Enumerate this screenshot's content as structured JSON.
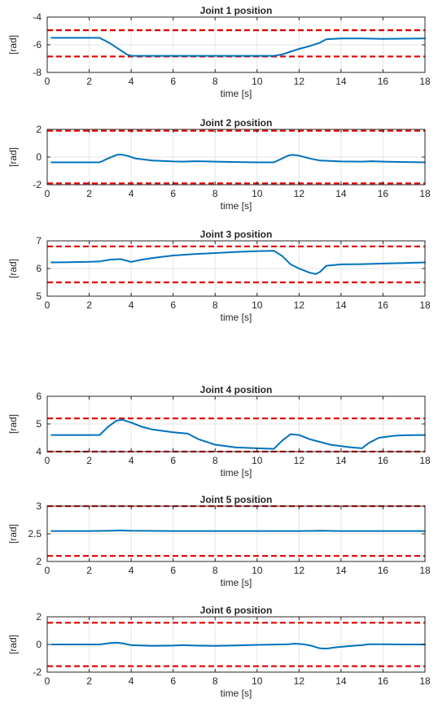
{
  "colors": {
    "series": "#0072BD",
    "limits": "#E00000",
    "grid": "#E6E6E6",
    "axes": "#262626"
  },
  "chart_data": [
    {
      "type": "line",
      "title": "Joint 1 position",
      "xlabel": "time [s]",
      "ylabel": "[rad]",
      "xlim": [
        0,
        18
      ],
      "ylim": [
        -8,
        -4
      ],
      "xticks": [
        0,
        2,
        4,
        6,
        8,
        10,
        12,
        14,
        16,
        18
      ],
      "yticks": [
        -8,
        -6,
        -4
      ],
      "grid": true,
      "series": [
        {
          "x": [
            0.2,
            2.5,
            3.0,
            3.5,
            3.8,
            4.0,
            5,
            6,
            7,
            8,
            9,
            10,
            10.8,
            11.2,
            11.6,
            12.0,
            12.5,
            13.0,
            13.3,
            14,
            15,
            16,
            17,
            18
          ],
          "y": [
            -5.5,
            -5.5,
            -5.9,
            -6.4,
            -6.7,
            -6.8,
            -6.8,
            -6.8,
            -6.8,
            -6.8,
            -6.8,
            -6.8,
            -6.8,
            -6.7,
            -6.5,
            -6.3,
            -6.1,
            -5.85,
            -5.6,
            -5.55,
            -5.55,
            -5.57,
            -5.56,
            -5.55
          ]
        }
      ],
      "limits": [
        -4.95,
        -6.85
      ]
    },
    {
      "type": "line",
      "title": "Joint 2 position",
      "xlabel": "time [s]",
      "ylabel": "[rad]",
      "xlim": [
        0,
        18
      ],
      "ylim": [
        -2,
        2
      ],
      "xticks": [
        0,
        2,
        4,
        6,
        8,
        10,
        12,
        14,
        16,
        18
      ],
      "yticks": [
        -2,
        0,
        2
      ],
      "grid": true,
      "series": [
        {
          "x": [
            0.2,
            2.5,
            2.9,
            3.3,
            3.5,
            3.8,
            4.2,
            5,
            6,
            6.5,
            7,
            8,
            9,
            10,
            10.8,
            11.2,
            11.5,
            11.7,
            12.0,
            12.5,
            13.0,
            14,
            15,
            15.5,
            16,
            17,
            18
          ],
          "y": [
            -0.38,
            -0.38,
            -0.1,
            0.15,
            0.18,
            0.1,
            -0.1,
            -0.25,
            -0.32,
            -0.33,
            -0.3,
            -0.33,
            -0.36,
            -0.38,
            -0.38,
            -0.1,
            0.12,
            0.16,
            0.1,
            -0.1,
            -0.25,
            -0.32,
            -0.33,
            -0.3,
            -0.33,
            -0.36,
            -0.38
          ]
        }
      ],
      "limits": [
        1.9,
        -1.9
      ]
    },
    {
      "type": "line",
      "title": "Joint 3 position",
      "xlabel": "time [s]",
      "ylabel": "[rad]",
      "xlim": [
        0,
        18
      ],
      "ylim": [
        5,
        7
      ],
      "xticks": [
        0,
        2,
        4,
        6,
        8,
        10,
        12,
        14,
        16,
        18
      ],
      "yticks": [
        5,
        6,
        7
      ],
      "grid": true,
      "series": [
        {
          "x": [
            0.2,
            1,
            2,
            2.5,
            3,
            3.5,
            3.8,
            4.0,
            4.5,
            5,
            6,
            7,
            8,
            9,
            10,
            10.8,
            11.2,
            11.6,
            12.0,
            12.5,
            12.8,
            13.0,
            13.3,
            14,
            15,
            16,
            17,
            18
          ],
          "y": [
            6.22,
            6.23,
            6.24,
            6.26,
            6.32,
            6.34,
            6.28,
            6.24,
            6.32,
            6.38,
            6.47,
            6.52,
            6.56,
            6.6,
            6.63,
            6.64,
            6.45,
            6.15,
            6.0,
            5.85,
            5.8,
            5.88,
            6.1,
            6.15,
            6.16,
            6.18,
            6.2,
            6.22
          ]
        }
      ],
      "limits": [
        6.8,
        5.5
      ]
    },
    {
      "type": "line",
      "title": "Joint 4 position",
      "xlabel": "time [s]",
      "ylabel": "[rad]",
      "xlim": [
        0,
        18
      ],
      "ylim": [
        4,
        6
      ],
      "xticks": [
        0,
        2,
        4,
        6,
        8,
        10,
        12,
        14,
        16,
        18
      ],
      "yticks": [
        4,
        5,
        6
      ],
      "grid": true,
      "series": [
        {
          "x": [
            0.2,
            2.5,
            2.9,
            3.3,
            3.6,
            4.0,
            4.5,
            5,
            6,
            6.7,
            7.2,
            8,
            9,
            10,
            10.8,
            11.2,
            11.6,
            12.0,
            12.5,
            13.0,
            13.5,
            14,
            14.5,
            15.0,
            15.3,
            15.8,
            16.5,
            17,
            18
          ],
          "y": [
            4.6,
            4.6,
            4.9,
            5.12,
            5.15,
            5.05,
            4.9,
            4.8,
            4.7,
            4.65,
            4.45,
            4.25,
            4.15,
            4.12,
            4.1,
            4.4,
            4.63,
            4.6,
            4.45,
            4.35,
            4.25,
            4.2,
            4.15,
            4.12,
            4.3,
            4.5,
            4.57,
            4.59,
            4.6
          ]
        }
      ],
      "limits": [
        5.2,
        4.0
      ]
    },
    {
      "type": "line",
      "title": "Joint 5 position",
      "xlabel": "time [s]",
      "ylabel": "[rad]",
      "xlim": [
        0,
        18
      ],
      "ylim": [
        2,
        3
      ],
      "xticks": [
        0,
        2,
        4,
        6,
        8,
        10,
        12,
        14,
        16,
        18
      ],
      "yticks": [
        2,
        2.5,
        3
      ],
      "ytick_labels": [
        "2",
        "2.5",
        "3"
      ],
      "grid": true,
      "series": [
        {
          "x": [
            0.2,
            2,
            3,
            3.5,
            4,
            6,
            8,
            10,
            12,
            13,
            14,
            16,
            18
          ],
          "y": [
            2.55,
            2.55,
            2.555,
            2.56,
            2.555,
            2.55,
            2.55,
            2.55,
            2.55,
            2.555,
            2.55,
            2.55,
            2.55
          ]
        }
      ],
      "limits": [
        3.0,
        2.1
      ]
    },
    {
      "type": "line",
      "title": "Joint 6 position",
      "xlabel": "time [s]",
      "ylabel": "[rad]",
      "xlim": [
        0,
        18
      ],
      "ylim": [
        -2,
        2
      ],
      "xticks": [
        0,
        2,
        4,
        6,
        8,
        10,
        12,
        14,
        16,
        18
      ],
      "yticks": [
        -2,
        0,
        2
      ],
      "grid": true,
      "series": [
        {
          "x": [
            0.2,
            2.5,
            3.0,
            3.3,
            3.6,
            4.0,
            5,
            6,
            6.5,
            7,
            8,
            9,
            10,
            11,
            11.5,
            11.8,
            12.2,
            12.6,
            13.0,
            13.3,
            13.8,
            14.5,
            15.0,
            15.3,
            16,
            17,
            18
          ],
          "y": [
            0.0,
            0.0,
            0.1,
            0.13,
            0.08,
            -0.05,
            -0.1,
            -0.08,
            -0.05,
            -0.08,
            -0.1,
            -0.07,
            -0.03,
            0.0,
            0.02,
            0.06,
            0.02,
            -0.1,
            -0.28,
            -0.3,
            -0.2,
            -0.1,
            -0.05,
            0.02,
            0.02,
            0.0,
            0.0
          ]
        }
      ],
      "limits": [
        1.57,
        -1.57
      ]
    }
  ]
}
